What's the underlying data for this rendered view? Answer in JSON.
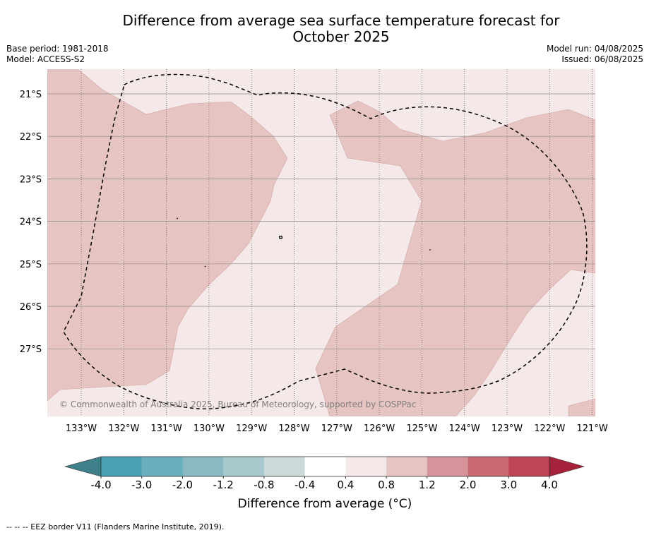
{
  "title_line1": "Difference from average sea surface temperature forecast for",
  "title_line2": "October 2025",
  "base_period": "Base period: 1981-2018",
  "model": "Model: ACCESS-S2",
  "model_run": "Model run: 04/08/2025",
  "issued": "Issued: 06/08/2025",
  "copyright": "© Commonwealth of Australia 2025, Bureau of Meteorology, supported by COSPPac",
  "footnote": "-- -- -- EEZ border V11 (Flanders Marine Institute, 2019).",
  "map": {
    "lat_labels": [
      "21°S",
      "22°S",
      "23°S",
      "24°S",
      "25°S",
      "26°S",
      "27°S"
    ],
    "lon_labels": [
      "133°W",
      "132°W",
      "131°W",
      "130°W",
      "129°W",
      "128°W",
      "127°W",
      "126°W",
      "125°W",
      "124°W",
      "123°W",
      "122°W",
      "121°W"
    ],
    "fill_colors": {
      "band_0_4_to_0_8": "#f4e9e8",
      "band_0_8_to_1_2": "#e6c4c1",
      "land": "#e8e8e8"
    }
  },
  "colorbar": {
    "label": "Difference from average (°C)",
    "ticks": [
      "-4.0",
      "-3.0",
      "-2.0",
      "-1.2",
      "-0.8",
      "-0.4",
      "0.4",
      "0.8",
      "1.2",
      "2.0",
      "3.0",
      "4.0"
    ],
    "colors": [
      "#4aa1b1",
      "#6bafbc",
      "#8ab9c4",
      "#a7c8cd",
      "#cbd9db",
      "#ffffff",
      "#f4e9e8",
      "#e6c4c1",
      "#d6949a",
      "#c96a73",
      "#bd4557"
    ],
    "under_color": "#3d808a",
    "over_color": "#a8213a"
  }
}
